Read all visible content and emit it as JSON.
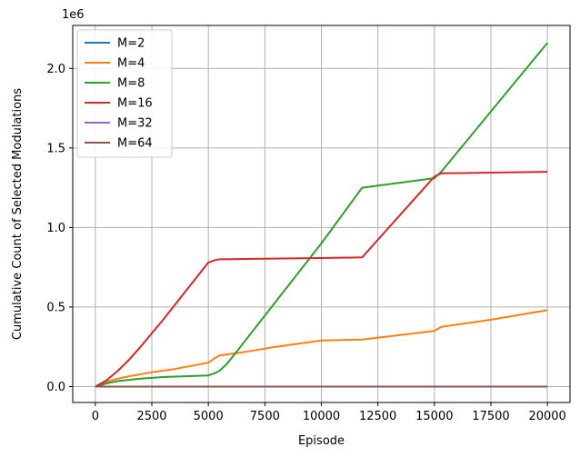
{
  "chart_data": {
    "type": "line",
    "title": "",
    "xlabel": "Episode",
    "ylabel": "Cumulative Count of Selected Modulations",
    "y_offset_text": "1e6",
    "xlim": [
      -1000,
      21000
    ],
    "ylim": [
      -100000,
      2270000
    ],
    "xticks": [
      0,
      2500,
      5000,
      7500,
      10000,
      12500,
      15000,
      17500,
      20000
    ],
    "xtick_labels": [
      "0",
      "2500",
      "5000",
      "7500",
      "10000",
      "12500",
      "15000",
      "17500",
      "20000"
    ],
    "yticks": [
      0,
      500000,
      1000000,
      1500000,
      2000000
    ],
    "ytick_labels": [
      "0.0",
      "0.5",
      "1.0",
      "1.5",
      "2.0"
    ],
    "grid": true,
    "legend_position": "top-left",
    "series": [
      {
        "name": "M=2",
        "color": "#1f77b4",
        "x": [
          0,
          20000
        ],
        "y": [
          0,
          0
        ]
      },
      {
        "name": "M=4",
        "color": "#ff7f0e",
        "x": [
          0,
          500,
          1000,
          1500,
          2500,
          3500,
          5000,
          5300,
          5500,
          6500,
          8000,
          10000,
          11800,
          15000,
          15300,
          17500,
          20000
        ],
        "y": [
          0,
          30000,
          50000,
          65000,
          90000,
          110000,
          150000,
          180000,
          195000,
          215000,
          250000,
          290000,
          295000,
          350000,
          375000,
          420000,
          480000
        ]
      },
      {
        "name": "M=8",
        "color": "#2ca02c",
        "x": [
          0,
          500,
          1000,
          2000,
          3000,
          4000,
          5000,
          5300,
          5500,
          5800,
          6200,
          10000,
          11800,
          15000,
          15300,
          20000
        ],
        "y": [
          0,
          20000,
          35000,
          50000,
          60000,
          65000,
          70000,
          85000,
          100000,
          140000,
          210000,
          900000,
          1250000,
          1310000,
          1350000,
          2160000
        ]
      },
      {
        "name": "M=16",
        "color": "#d62728",
        "x": [
          0,
          500,
          1000,
          1500,
          2000,
          3000,
          4000,
          5000,
          5300,
          5500,
          7000,
          10000,
          11800,
          15000,
          15300,
          17500,
          20000
        ],
        "y": [
          0,
          40000,
          100000,
          170000,
          250000,
          420000,
          600000,
          780000,
          795000,
          800000,
          803000,
          808000,
          812000,
          1320000,
          1340000,
          1345000,
          1350000
        ]
      },
      {
        "name": "M=32",
        "color": "#9467bd",
        "x": [
          0,
          20000
        ],
        "y": [
          0,
          0
        ]
      },
      {
        "name": "M=64",
        "color": "#8c564b",
        "x": [
          0,
          20000
        ],
        "y": [
          0,
          0
        ]
      }
    ]
  }
}
